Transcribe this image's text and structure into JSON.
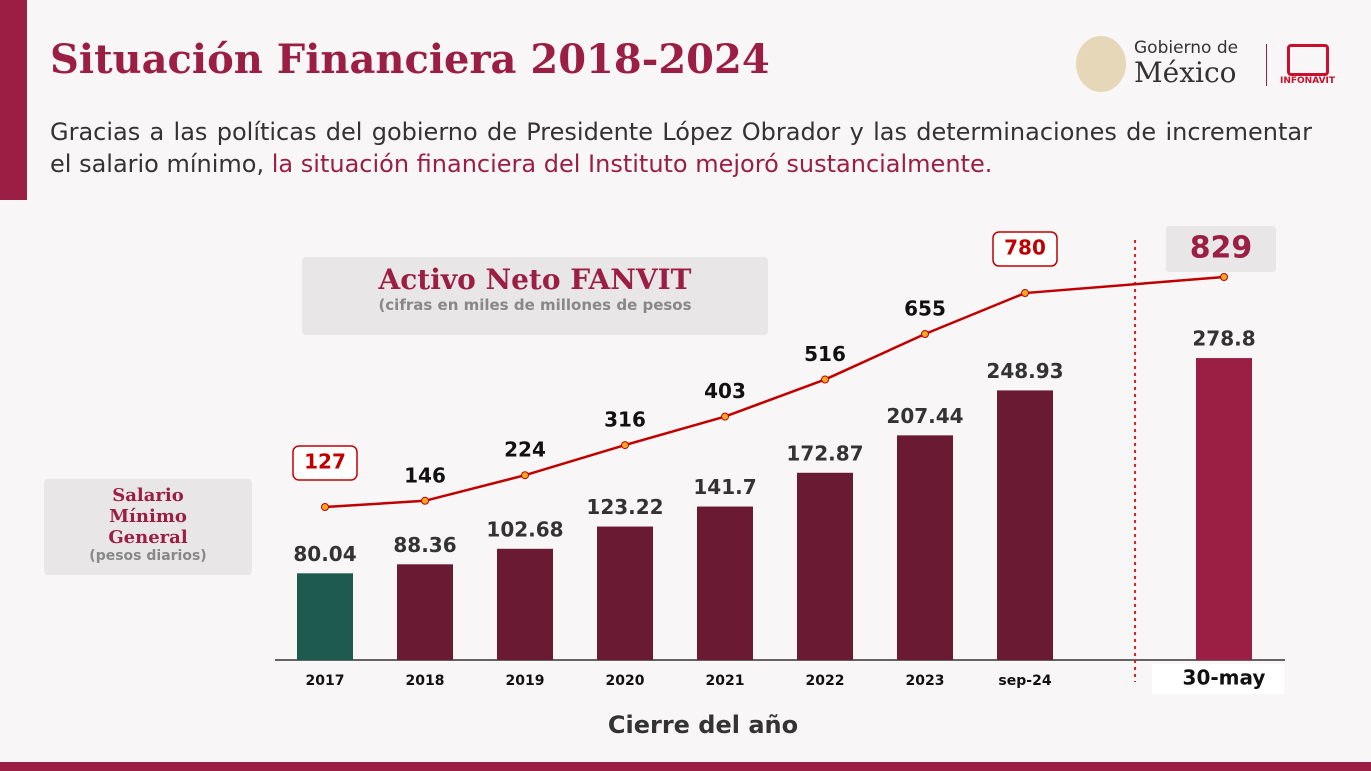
{
  "header": {
    "title": "Situación Financiera 2018-2024",
    "text_plain": "Gracias a las políticas del gobierno de Presidente López Obrador y las determinaciones de incrementar el salario mínimo,",
    "text_highlight": "la situación financiera del Instituto mejoró sustancialmente."
  },
  "logos": {
    "gobierno": "Gobierno de",
    "mexico": "México",
    "infonavit": "INFONAVIT"
  },
  "chart_data": {
    "type": "bar",
    "x_label": "Cierre del año",
    "categories": [
      "2017",
      "2018",
      "2019",
      "2020",
      "2021",
      "2022",
      "2023",
      "sep-24",
      "30-may"
    ],
    "series": [
      {
        "name": "Salario Mínimo General",
        "note": "(pesos diarios)",
        "type": "bar",
        "colors": [
          "#1e5b4e",
          "#6b1a34",
          "#6b1a34",
          "#6b1a34",
          "#6b1a34",
          "#6b1a34",
          "#6b1a34",
          "#6b1a34",
          "#9b1f45"
        ],
        "values": [
          80.04,
          88.36,
          102.68,
          123.22,
          141.7,
          172.87,
          207.44,
          248.93,
          278.8
        ]
      },
      {
        "name": "Activo Neto FANVIT",
        "note": "(cifras en miles de millones de pesos",
        "type": "line",
        "color": "#c00000",
        "values": [
          127,
          146,
          224,
          316,
          403,
          516,
          655,
          780,
          829
        ]
      }
    ]
  }
}
